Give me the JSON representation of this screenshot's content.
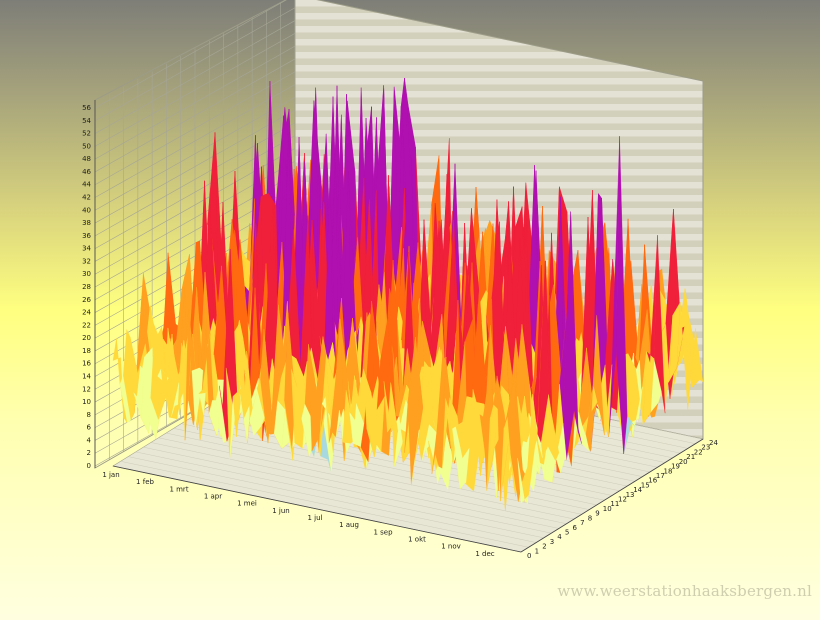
{
  "watermark": "www.weerstationhaaksbergen.nl",
  "chart_data": {
    "type": "surface3d",
    "title": "",
    "x_axis": {
      "ticks": [
        "1 jan",
        "1 feb",
        "1 mrt",
        "1 apr",
        "1 mei",
        "1 jun",
        "1 jul",
        "1 aug",
        "1 sep",
        "1 okt",
        "1 nov",
        "1 dec"
      ],
      "range": [
        "1 jan",
        "31 dec"
      ]
    },
    "depth_axis": {
      "ticks": [
        0,
        1,
        2,
        3,
        4,
        5,
        6,
        7,
        8,
        9,
        10,
        11,
        12,
        13,
        14,
        15,
        16,
        17,
        18,
        19,
        20,
        21,
        22,
        23,
        24
      ],
      "range": [
        0,
        24
      ]
    },
    "y_axis": {
      "ticks": [
        0,
        2,
        4,
        6,
        8,
        10,
        12,
        14,
        16,
        18,
        20,
        22,
        24,
        26,
        28,
        30,
        32,
        34,
        36,
        38,
        40,
        42,
        44,
        46,
        48,
        50,
        52,
        54,
        56
      ],
      "range": [
        0,
        56
      ]
    },
    "color_scale": [
      {
        "max": 6,
        "color": "#8888ff"
      },
      {
        "max": 12,
        "color": "#a8d8e0"
      },
      {
        "max": 18,
        "color": "#f0ff90"
      },
      {
        "max": 24,
        "color": "#ffd83a"
      },
      {
        "max": 30,
        "color": "#ffa020"
      },
      {
        "max": 36,
        "color": "#ff6a10"
      },
      {
        "max": 44,
        "color": "#f0203a"
      },
      {
        "max": 56,
        "color": "#b010b0"
      }
    ],
    "monthly_peak_values": [
      {
        "month": "jan",
        "value": 38
      },
      {
        "month": "feb",
        "value": 34
      },
      {
        "month": "mrt",
        "value": 46
      },
      {
        "month": "apr",
        "value": 44
      },
      {
        "month": "mei",
        "value": 56
      },
      {
        "month": "jun",
        "value": 42
      },
      {
        "month": "jul",
        "value": 36
      },
      {
        "month": "aug",
        "value": 34
      },
      {
        "month": "sep",
        "value": 36
      },
      {
        "month": "okt",
        "value": 40
      },
      {
        "month": "nov",
        "value": 38
      },
      {
        "month": "dec",
        "value": 48
      }
    ],
    "grid": true,
    "legend": "none"
  }
}
